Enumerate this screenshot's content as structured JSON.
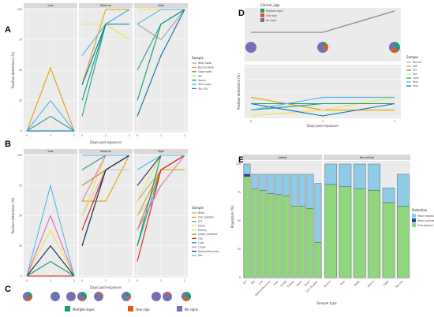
{
  "panel_labels": {
    "A": "A",
    "B": "B",
    "C": "C",
    "D": "D",
    "E": "E"
  },
  "chart_data": [
    {
      "id": "A",
      "type": "line",
      "facets": [
        "Low",
        "Medium",
        "High"
      ],
      "x": [
        0,
        1,
        2
      ],
      "xlabel": "Days post-exposure",
      "ylabel": "Positive detections (%)",
      "ylim": [
        0,
        100
      ],
      "yticks": [
        0,
        25,
        50,
        75,
        100
      ],
      "legend_title": "Sample",
      "series": [
        {
          "name": "Body swab",
          "color": "#a6a6a6",
          "values": [
            [
              0,
              0,
              0
            ],
            [
              88,
              88,
              100
            ],
            [
              88,
              75,
              100
            ]
          ]
        },
        {
          "name": "Buccal swab",
          "color": "#e69f00",
          "values": [
            [
              0,
              52,
              0
            ],
            [
              38,
              100,
              100
            ],
            [
              100,
              100,
              100
            ]
          ]
        },
        {
          "name": "Cage swab",
          "color": "#2a9d8f",
          "values": [
            [
              0,
              12,
              0
            ],
            [
              12,
              88,
              100
            ],
            [
              50,
              88,
              100
            ]
          ]
        },
        {
          "name": "Gill",
          "color": "#f0e442",
          "values": [
            [
              0,
              0,
              0
            ],
            [
              88,
              88,
              75
            ],
            [
              100,
              100,
              100
            ]
          ]
        },
        {
          "name": "Sperm",
          "color": "#009e73",
          "values": [
            [
              0,
              0,
              0
            ],
            [
              25,
              88,
              88
            ],
            [
              25,
              88,
              100
            ]
          ]
        },
        {
          "name": "Tank swab",
          "color": "#56b4e9",
          "values": [
            [
              0,
              25,
              0
            ],
            [
              62,
              88,
              100
            ],
            [
              88,
              100,
              100
            ]
          ]
        },
        {
          "name": "Toe clip",
          "color": "#0072b2",
          "values": [
            [
              0,
              0,
              0
            ],
            [
              38,
              88,
              88
            ],
            [
              12,
              62,
              100
            ]
          ]
        }
      ]
    },
    {
      "id": "B",
      "type": "line",
      "facets": [
        "Low",
        "Medium",
        "High"
      ],
      "x": [
        0,
        1,
        2
      ],
      "xlabel": "Days post-exposure",
      "ylabel": "Positive detections (%)",
      "ylim": [
        0,
        100
      ],
      "yticks": [
        0,
        25,
        50,
        75,
        100
      ],
      "legend_title": "Sample",
      "series": [
        {
          "name": "Brain",
          "color": "#a6a6a6",
          "values": [
            [
              0,
              50,
              0
            ],
            [
              38,
              88,
              100
            ],
            [
              62,
              88,
              100
            ]
          ]
        },
        {
          "name": "Gall_bladder",
          "color": "#e69f00",
          "values": [
            [
              0,
              0,
              0
            ],
            [
              62,
              62,
              100
            ],
            [
              50,
              88,
              88
            ]
          ]
        },
        {
          "name": "GIT",
          "color": "#2a9d8f",
          "values": [
            [
              0,
              0,
              0
            ],
            [
              88,
              100,
              100
            ],
            [
              25,
              88,
              100
            ]
          ]
        },
        {
          "name": "Heart",
          "color": "#f0e442",
          "values": [
            [
              0,
              38,
              0
            ],
            [
              50,
              100,
              100
            ],
            [
              62,
              100,
              100
            ]
          ]
        },
        {
          "name": "Kidney",
          "color": "#c8c8c8",
          "values": [
            [
              0,
              25,
              0
            ],
            [
              50,
              88,
              88
            ],
            [
              50,
              75,
              100
            ]
          ]
        },
        {
          "name": "Large_Intestine",
          "color": "#b8860b",
          "values": [
            [
              0,
              0,
              0
            ],
            [
              75,
              88,
              100
            ],
            [
              38,
              88,
              100
            ]
          ]
        },
        {
          "name": "Leg",
          "color": "#e41a1c",
          "values": [
            [
              0,
              0,
              0
            ],
            [
              38,
              88,
              100
            ],
            [
              12,
              88,
              100
            ]
          ]
        },
        {
          "name": "Liver",
          "color": "#009e73",
          "values": [
            [
              0,
              12,
              0
            ],
            [
              25,
              88,
              100
            ],
            [
              25,
              100,
              100
            ]
          ]
        },
        {
          "name": "Lungs",
          "color": "#e377c2",
          "values": [
            [
              0,
              50,
              0
            ],
            [
              62,
              100,
              100
            ],
            [
              38,
              75,
              100
            ]
          ]
        },
        {
          "name": "Spleen/Pancreas",
          "color": "#1a2a5a",
          "values": [
            [
              0,
              25,
              0
            ],
            [
              25,
              88,
              100
            ],
            [
              75,
              100,
              100
            ]
          ]
        },
        {
          "name": "Toe",
          "color": "#56b4e9",
          "values": [
            [
              0,
              75,
              0
            ],
            [
              100,
              100,
              100
            ],
            [
              88,
              100,
              100
            ]
          ]
        }
      ]
    },
    {
      "id": "C",
      "type": "pie",
      "legend_title": "",
      "categories": [
        "Multiple signs",
        "One sign",
        "No signs"
      ],
      "colors": [
        "#1b9e77",
        "#e7541e",
        "#7570b3"
      ],
      "pies": [
        [
          0.25,
          0.25,
          0.5
        ],
        [
          0.12,
          0.0,
          0.88
        ],
        [
          0.0,
          0.0,
          1.0
        ],
        [
          0.38,
          0.12,
          0.5
        ],
        [
          0.0,
          0.12,
          0.88
        ],
        [
          0.25,
          0.12,
          0.63
        ],
        [
          0.0,
          0.0,
          1.0
        ],
        [
          0.0,
          0.12,
          0.88
        ],
        [
          0.38,
          0.25,
          0.37
        ]
      ]
    },
    {
      "id": "D",
      "type": "line",
      "x": [
        0,
        1,
        2
      ],
      "xlabel": "Days post-exposure",
      "ylabel": "Positive detections (%)",
      "ylim": [
        0,
        100
      ],
      "legend_title": "Sample",
      "top_line": {
        "values": [
          55,
          55,
          100
        ],
        "color": "#888888"
      },
      "top_legend_title": "Clinical_sign",
      "top_categories": [
        "Multiple signs",
        "One sign",
        "No signs"
      ],
      "top_colors": [
        "#1b9e77",
        "#e7541e",
        "#7570b3"
      ],
      "top_pies": [
        [
          0.0,
          0.0,
          1.0
        ],
        [
          0.12,
          0.25,
          0.63
        ],
        [
          0.38,
          0.25,
          0.37
        ]
      ],
      "series": [
        {
          "name": "Buccal",
          "color": "#a6a6a6",
          "values": [
            12,
            25,
            25
          ]
        },
        {
          "name": "Gall",
          "color": "#e69f00",
          "values": [
            38,
            12,
            12
          ]
        },
        {
          "name": "GIT",
          "color": "#2a9d8f",
          "values": [
            12,
            25,
            25
          ]
        },
        {
          "name": "Toe",
          "color": "#f0e442",
          "values": [
            0,
            12,
            38
          ]
        },
        {
          "name": "Liver",
          "color": "#009e73",
          "values": [
            25,
            25,
            25
          ]
        },
        {
          "name": "Tank",
          "color": "#56b4e9",
          "values": [
            12,
            38,
            38
          ]
        },
        {
          "name": "Toe2",
          "color": "#0072b2",
          "values": [
            25,
            0,
            25
          ]
        }
      ]
    },
    {
      "id": "E",
      "type": "bar",
      "facets": [
        "Lethal",
        "Non-lethal"
      ],
      "xlabel": "Sample type",
      "ylabel": "Proportion (%)",
      "ylim": [
        0,
        100
      ],
      "legend_title": "Detection",
      "stack_names": [
        "False negative",
        "False positive",
        "True positive"
      ],
      "stack_colors": [
        "#8fcbe6",
        "#1f4e9c",
        "#8fd67f"
      ],
      "lethal": {
        "categories": [
          "GIT",
          "Toe",
          "Leg",
          "Spleen/Pancreas",
          "Liver",
          "Lungs",
          "Kidney",
          "Heart",
          "Brain",
          "Gall_bladder"
        ],
        "true_positive": [
          89,
          78,
          77,
          74,
          73,
          72,
          63,
          63,
          61,
          31
        ],
        "false_positive": [
          2,
          0,
          0,
          0,
          0,
          0,
          0,
          0,
          0,
          0
        ],
        "false_negative": [
          9,
          13,
          14,
          17,
          18,
          19,
          28,
          28,
          30,
          52
        ]
      },
      "nonlethal": {
        "categories": [
          "Buccal",
          "Tank",
          "Body",
          "Sperm",
          "Cage",
          "Toe clip"
        ],
        "true_positive": [
          82,
          80,
          78,
          77,
          66,
          63
        ],
        "false_positive": [
          0,
          0,
          0,
          0,
          0,
          0
        ],
        "false_negative": [
          18,
          20,
          22,
          23,
          13,
          28
        ]
      }
    }
  ]
}
